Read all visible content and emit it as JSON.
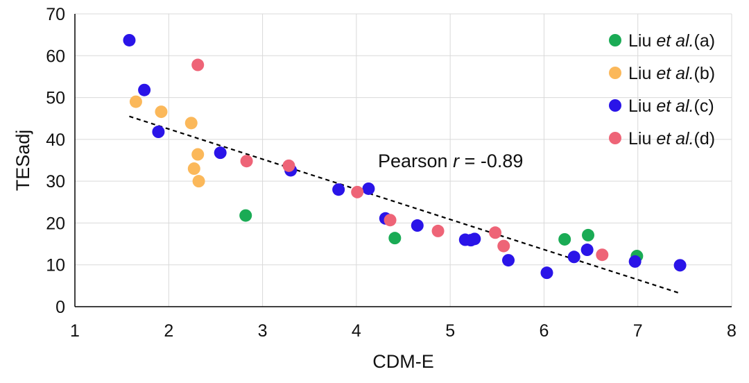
{
  "chart_data": {
    "type": "scatter",
    "title": "",
    "xlabel": "CDM-E",
    "ylabel": "TESadj",
    "xlim": [
      1,
      8
    ],
    "ylim": [
      0,
      70
    ],
    "xticks": [
      1,
      2,
      3,
      4,
      5,
      6,
      7,
      8
    ],
    "yticks": [
      0,
      10,
      20,
      30,
      40,
      50,
      60,
      70
    ],
    "grid": true,
    "legend_position": "top-right",
    "series": [
      {
        "name_prefix": "Liu ",
        "name_italic": "et al.",
        "name_suffix": "(a)",
        "color": "#1aab55",
        "points": [
          [
            2.82,
            21.8
          ],
          [
            4.41,
            16.4
          ],
          [
            6.22,
            16.1
          ],
          [
            6.47,
            17.1
          ],
          [
            6.99,
            12.1
          ]
        ]
      },
      {
        "name_prefix": "Liu ",
        "name_italic": "et al.",
        "name_suffix": "(b)",
        "color": "#fbb85a",
        "points": [
          [
            1.65,
            49.0
          ],
          [
            1.92,
            46.6
          ],
          [
            2.24,
            43.9
          ],
          [
            2.31,
            36.4
          ],
          [
            2.27,
            33.0
          ],
          [
            2.32,
            30.0
          ]
        ]
      },
      {
        "name_prefix": "Liu ",
        "name_italic": "et al.",
        "name_suffix": "(c)",
        "color": "#2a14e8",
        "points": [
          [
            1.58,
            63.7
          ],
          [
            1.74,
            51.8
          ],
          [
            1.89,
            41.8
          ],
          [
            2.55,
            36.8
          ],
          [
            3.3,
            32.6
          ],
          [
            3.81,
            28.0
          ],
          [
            4.13,
            28.2
          ],
          [
            4.31,
            21.1
          ],
          [
            4.65,
            19.4
          ],
          [
            5.16,
            16.0
          ],
          [
            5.22,
            15.9
          ],
          [
            5.26,
            16.2
          ],
          [
            5.62,
            11.1
          ],
          [
            6.03,
            8.1
          ],
          [
            6.32,
            11.9
          ],
          [
            6.46,
            13.6
          ],
          [
            6.97,
            10.8
          ],
          [
            7.45,
            9.9
          ]
        ]
      },
      {
        "name_prefix": "Liu ",
        "name_italic": "et al.",
        "name_suffix": "(d)",
        "color": "#ee6477",
        "points": [
          [
            2.31,
            57.8
          ],
          [
            2.83,
            34.8
          ],
          [
            3.28,
            33.7
          ],
          [
            4.01,
            27.4
          ],
          [
            4.36,
            20.7
          ],
          [
            4.87,
            18.1
          ],
          [
            5.48,
            17.7
          ],
          [
            5.57,
            14.5
          ],
          [
            6.62,
            12.4
          ]
        ]
      }
    ],
    "trendline": {
      "style": "dashed",
      "color": "#000000",
      "x": [
        1.58,
        7.45
      ],
      "y": [
        45.5,
        3.2
      ]
    },
    "annotation": {
      "prefix": "Pearson ",
      "italic": "r",
      "suffix": " = -0.89"
    }
  }
}
